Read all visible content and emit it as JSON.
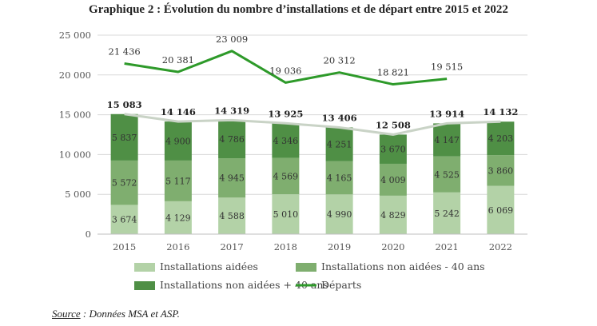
{
  "title": "Graphique 2 : Évolution du nombre d’installations et de départ entre 2015 et 2022",
  "source": {
    "key": "Source",
    "text": " : Données MSA et ASP."
  },
  "colors": {
    "aidees": "#b3d2a7",
    "non_aidees_moins40": "#7fae6f",
    "non_aidees_plus40": "#4f8f45",
    "departs": "#2e9a2a",
    "total_line": "#c9d3c6",
    "grid": "#d8d8d8"
  },
  "chart_data": {
    "type": "bar",
    "stacked": true,
    "categories": [
      "2015",
      "2016",
      "2017",
      "2018",
      "2019",
      "2020",
      "2021",
      "2022"
    ],
    "series": [
      {
        "name": "Installations aidées",
        "values": [
          3674,
          4129,
          4588,
          5010,
          4990,
          4829,
          5242,
          6069
        ],
        "labels": [
          "3 674",
          "4 129",
          "4 588",
          "5 010",
          "4 990",
          "4 829",
          "5 242",
          "6 069"
        ]
      },
      {
        "name": "Installations non aidées - 40 ans",
        "values": [
          5572,
          5117,
          4945,
          4569,
          4165,
          4009,
          4525,
          3860
        ],
        "labels": [
          "5 572",
          "5 117",
          "4 945",
          "4 569",
          "4 165",
          "4 009",
          "4 525",
          "3 860"
        ]
      },
      {
        "name": "Installations non aidées + 40 ans",
        "values": [
          5837,
          4900,
          4786,
          4346,
          4251,
          3670,
          4147,
          4203
        ],
        "labels": [
          "5 837",
          "4 900",
          "4 786",
          "4 346",
          "4 251",
          "3 670",
          "4 147",
          "4 203"
        ]
      }
    ],
    "totals": {
      "values": [
        15083,
        14146,
        14319,
        13925,
        13406,
        12508,
        13914,
        14132
      ],
      "labels": [
        "15 083",
        "14 146",
        "14 319",
        "13 925",
        "13 406",
        "12 508",
        "13 914",
        "14 132"
      ]
    },
    "departs": {
      "name": "Départs",
      "values": [
        21436,
        20381,
        23009,
        19036,
        20312,
        18821,
        19515
      ],
      "labels": [
        "21 436",
        "20 381",
        "23 009",
        "19 036",
        "20 312",
        "18 821",
        "19 515"
      ]
    },
    "ylim": [
      0,
      25000
    ],
    "yticks": [
      0,
      5000,
      10000,
      15000,
      20000,
      25000
    ],
    "ytick_labels": [
      "0",
      "5 000",
      "10 000",
      "15 000",
      "20 000",
      "25 000"
    ],
    "grid": true,
    "legend_position": "bottom"
  }
}
